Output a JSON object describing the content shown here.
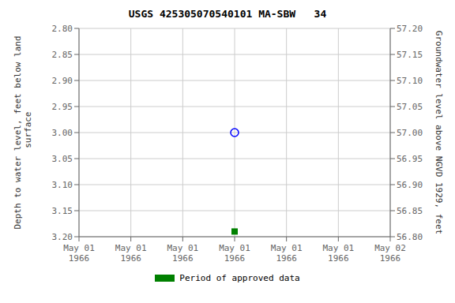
{
  "chart_data": {
    "type": "scatter",
    "title": "USGS 425305070540101 MA-SBW   34",
    "ylabel": "Depth to water level, feet below land\n surface",
    "y2label": "Groundwater level above NGVD 1929, feet",
    "categories": [
      "May 01\n1966",
      "May 01\n1966",
      "May 01\n1966",
      "May 01\n1966",
      "May 01\n1966",
      "May 01\n1966",
      "May 02\n1966"
    ],
    "series": [
      {
        "color": "#0000ff",
        "marker": "open_circle",
        "values": [
          null,
          null,
          null,
          3.0,
          null,
          null,
          null
        ]
      },
      {
        "name": "Period of approved data",
        "color": "#008000",
        "marker": "square",
        "values": [
          null,
          null,
          null,
          3.19,
          null,
          null,
          null
        ]
      }
    ],
    "ylim": [
      3.2,
      2.8
    ],
    "yticks": [
      {
        "value": 2.8,
        "label": "2.80"
      },
      2.85,
      {
        "value": 2.9,
        "label": "2.90"
      },
      2.95,
      {
        "value": 3.0,
        "label": "3.00"
      },
      3.05,
      {
        "value": 3.1,
        "label": "3.10"
      },
      3.15,
      {
        "value": 3.2,
        "label": "3.20"
      }
    ],
    "y2lim": [
      56.8,
      57.2
    ],
    "y2ticks": [
      {
        "value": 56.8,
        "label": "56.80"
      },
      56.85,
      {
        "value": 56.9,
        "label": "56.90"
      },
      56.95,
      {
        "value": 57.0,
        "label": "57.00"
      },
      57.05,
      {
        "value": 57.1,
        "label": "57.10"
      },
      57.15,
      {
        "value": 57.2,
        "label": "57.20"
      }
    ],
    "grid": true,
    "legend": "bottom"
  }
}
